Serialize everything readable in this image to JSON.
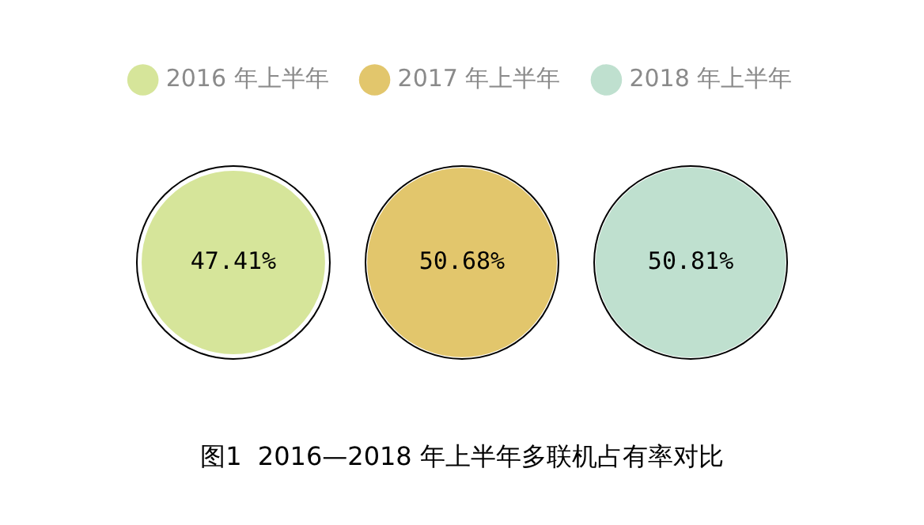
{
  "chart_data": {
    "type": "other",
    "title": "图1  2016—2018 年上半年多联机占有率对比",
    "categories": [
      "2016 年上半年",
      "2017 年上半年",
      "2018 年上半年"
    ],
    "values": [
      47.41,
      50.68,
      50.81
    ],
    "value_labels": [
      "47.41%",
      "50.68%",
      "50.81%"
    ],
    "colors": [
      "#d6e59a",
      "#e2c66c",
      "#bfe0cf"
    ]
  }
}
